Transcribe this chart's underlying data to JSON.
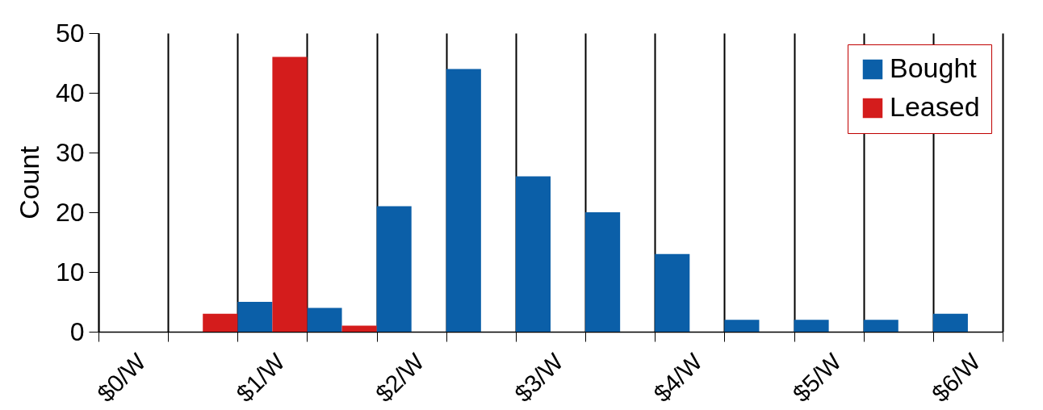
{
  "chart_data": {
    "type": "bar",
    "ylabel": "Count",
    "categories": [
      "$0/W",
      null,
      "$1/W",
      null,
      "$2/W",
      null,
      "$3/W",
      null,
      "$4/W",
      null,
      "$5/W",
      null,
      "$6/W"
    ],
    "series": [
      {
        "name": "Bought",
        "color": "#0b5fa8",
        "values": [
          0,
          0,
          5,
          4,
          21,
          44,
          26,
          20,
          13,
          2,
          2,
          2,
          3
        ]
      },
      {
        "name": "Leased",
        "color": "#d41c1c",
        "values": [
          0,
          3,
          46,
          1,
          0,
          0,
          0,
          0,
          0,
          0,
          0,
          0,
          0
        ]
      }
    ],
    "ylim": [
      0,
      50
    ],
    "yticks": [
      0,
      10,
      20,
      30,
      40,
      50
    ],
    "grid": "x",
    "legend": "top right"
  }
}
